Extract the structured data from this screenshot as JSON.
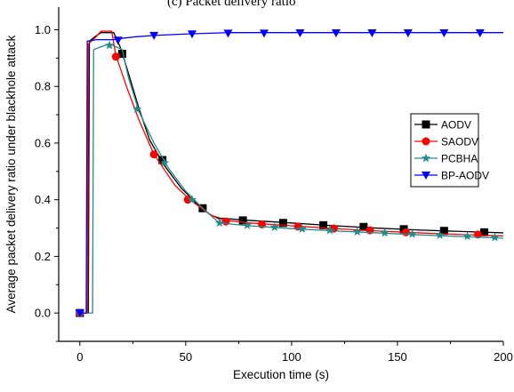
{
  "chart_data": {
    "type": "line",
    "heading_fragment": "(c) Packet delivery ratio",
    "xlabel": "Execution time (s)",
    "ylabel": "Average packet delivery ratio under blackhole attack",
    "xlim": [
      -10,
      200
    ],
    "ylim": [
      -0.1,
      1.08
    ],
    "x_ticks": [
      "0",
      "50",
      "100",
      "150",
      "200"
    ],
    "y_ticks": [
      "0.0",
      "0.2",
      "0.4",
      "0.6",
      "0.8",
      "1.0"
    ],
    "legend_position": "right",
    "series": [
      {
        "name": "AODV",
        "color": "#000000",
        "marker": "square",
        "line": [
          [
            0,
            0
          ],
          [
            4,
            0
          ],
          [
            4.5,
            0.96
          ],
          [
            7,
            0.975
          ],
          [
            10,
            0.99
          ],
          [
            16,
            0.99
          ],
          [
            19,
            0.94
          ],
          [
            22,
            0.87
          ],
          [
            28,
            0.72
          ],
          [
            33,
            0.61
          ],
          [
            40,
            0.52
          ],
          [
            48,
            0.44
          ],
          [
            56,
            0.38
          ],
          [
            62,
            0.345
          ],
          [
            66,
            0.335
          ],
          [
            80,
            0.327
          ],
          [
            100,
            0.318
          ],
          [
            120,
            0.308
          ],
          [
            140,
            0.3
          ],
          [
            160,
            0.293
          ],
          [
            180,
            0.288
          ],
          [
            200,
            0.283
          ]
        ],
        "markers": [
          [
            0,
            0
          ],
          [
            20,
            0.915
          ],
          [
            39,
            0.54
          ],
          [
            58,
            0.37
          ],
          [
            77,
            0.327
          ],
          [
            96,
            0.318
          ],
          [
            115,
            0.31
          ],
          [
            134,
            0.304
          ],
          [
            153,
            0.296
          ],
          [
            172,
            0.29
          ],
          [
            191,
            0.285
          ]
        ]
      },
      {
        "name": "SAODV",
        "color": "#ff0000",
        "marker": "circle",
        "line": [
          [
            0,
            0
          ],
          [
            3.5,
            0
          ],
          [
            4,
            0.95
          ],
          [
            7,
            0.97
          ],
          [
            10,
            0.995
          ],
          [
            15,
            0.995
          ],
          [
            17,
            0.91
          ],
          [
            22,
            0.8
          ],
          [
            28,
            0.68
          ],
          [
            35,
            0.56
          ],
          [
            45,
            0.45
          ],
          [
            52,
            0.4
          ],
          [
            60,
            0.355
          ],
          [
            66,
            0.33
          ],
          [
            80,
            0.318
          ],
          [
            100,
            0.308
          ],
          [
            120,
            0.298
          ],
          [
            140,
            0.29
          ],
          [
            160,
            0.283
          ],
          [
            180,
            0.277
          ],
          [
            200,
            0.272
          ]
        ],
        "markers": [
          [
            0,
            0
          ],
          [
            17,
            0.905
          ],
          [
            35,
            0.56
          ],
          [
            51,
            0.4
          ],
          [
            69,
            0.323
          ],
          [
            86,
            0.313
          ],
          [
            103,
            0.305
          ],
          [
            120,
            0.298
          ],
          [
            137,
            0.292
          ],
          [
            154,
            0.285
          ],
          [
            188,
            0.277
          ]
        ]
      },
      {
        "name": "PCBHA",
        "color": "#228b8b",
        "marker": "star",
        "line": [
          [
            0,
            0
          ],
          [
            6,
            0
          ],
          [
            6.5,
            0.93
          ],
          [
            10,
            0.94
          ],
          [
            14,
            0.95
          ],
          [
            20,
            0.93
          ],
          [
            23,
            0.83
          ],
          [
            28,
            0.71
          ],
          [
            35,
            0.6
          ],
          [
            42,
            0.51
          ],
          [
            50,
            0.43
          ],
          [
            58,
            0.37
          ],
          [
            64,
            0.33
          ],
          [
            66,
            0.318
          ],
          [
            80,
            0.308
          ],
          [
            100,
            0.298
          ],
          [
            120,
            0.29
          ],
          [
            140,
            0.283
          ],
          [
            160,
            0.276
          ],
          [
            180,
            0.27
          ],
          [
            200,
            0.264
          ]
        ],
        "markers": [
          [
            0,
            0
          ],
          [
            14,
            0.945
          ],
          [
            27,
            0.72
          ],
          [
            40,
            0.53
          ],
          [
            53,
            0.4
          ],
          [
            66,
            0.318
          ],
          [
            79,
            0.31
          ],
          [
            92,
            0.303
          ],
          [
            105,
            0.297
          ],
          [
            118,
            0.292
          ],
          [
            131,
            0.287
          ],
          [
            144,
            0.283
          ],
          [
            157,
            0.279
          ],
          [
            170,
            0.275
          ],
          [
            183,
            0.271
          ],
          [
            196,
            0.267
          ]
        ]
      },
      {
        "name": "BP-AODV",
        "color": "#0000ff",
        "marker": "triangle-down",
        "line": [
          [
            0,
            0
          ],
          [
            3,
            0
          ],
          [
            3.5,
            0.96
          ],
          [
            8,
            0.965
          ],
          [
            16,
            0.965
          ],
          [
            20,
            0.97
          ],
          [
            26,
            0.975
          ],
          [
            35,
            0.98
          ],
          [
            50,
            0.985
          ],
          [
            70,
            0.99
          ],
          [
            100,
            0.99
          ],
          [
            150,
            0.99
          ],
          [
            200,
            0.99
          ]
        ],
        "markers": [
          [
            0,
            0
          ],
          [
            18,
            0.963
          ],
          [
            35,
            0.98
          ],
          [
            53,
            0.985
          ],
          [
            70,
            0.988
          ],
          [
            87,
            0.988
          ],
          [
            104,
            0.989
          ],
          [
            121,
            0.989
          ],
          [
            138,
            0.989
          ],
          [
            155,
            0.989
          ],
          [
            172,
            0.989
          ],
          [
            189,
            0.989
          ]
        ]
      }
    ]
  }
}
